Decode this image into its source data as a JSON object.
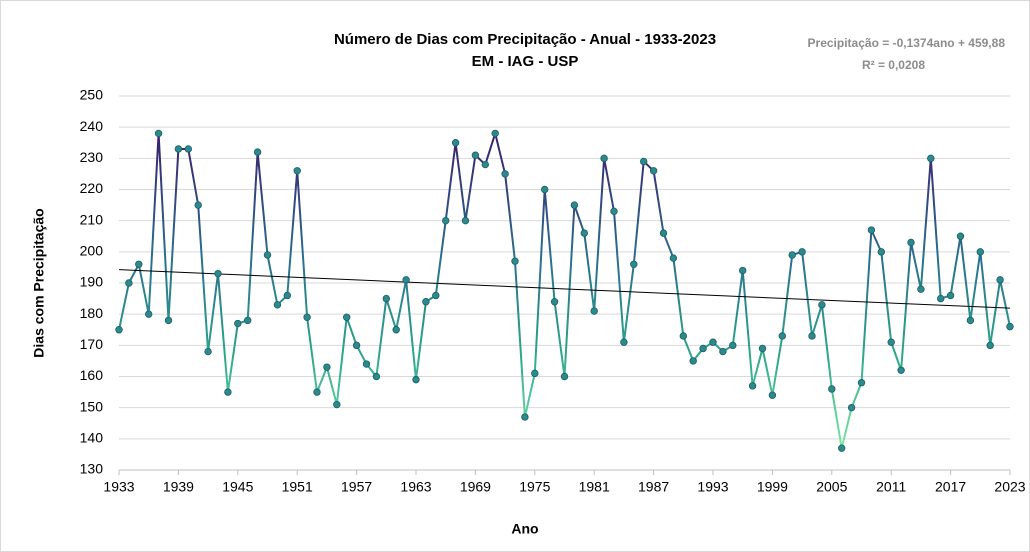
{
  "chart_data": {
    "type": "line",
    "title": "Número de Dias com Precipitação - Anual - 1933-2023",
    "subtitle": "EM - IAG - USP",
    "x_label": "Ano",
    "y_label": "Dias com Precipitação",
    "x": [
      1933,
      1934,
      1935,
      1936,
      1937,
      1938,
      1939,
      1940,
      1941,
      1942,
      1943,
      1944,
      1945,
      1946,
      1947,
      1948,
      1949,
      1950,
      1951,
      1952,
      1953,
      1954,
      1955,
      1956,
      1957,
      1958,
      1959,
      1960,
      1961,
      1962,
      1963,
      1964,
      1965,
      1966,
      1967,
      1968,
      1969,
      1970,
      1971,
      1972,
      1973,
      1974,
      1975,
      1976,
      1977,
      1978,
      1979,
      1980,
      1981,
      1982,
      1983,
      1984,
      1985,
      1986,
      1987,
      1988,
      1989,
      1990,
      1991,
      1992,
      1993,
      1994,
      1995,
      1996,
      1997,
      1998,
      1999,
      2000,
      2001,
      2002,
      2003,
      2004,
      2005,
      2006,
      2007,
      2008,
      2009,
      2010,
      2011,
      2012,
      2013,
      2014,
      2015,
      2016,
      2017,
      2018,
      2019,
      2020,
      2021,
      2022,
      2023
    ],
    "values": [
      175,
      190,
      196,
      180,
      238,
      178,
      233,
      233,
      215,
      168,
      193,
      155,
      177,
      178,
      232,
      199,
      183,
      186,
      226,
      179,
      155,
      163,
      151,
      179,
      170,
      164,
      160,
      185,
      175,
      191,
      159,
      184,
      186,
      210,
      235,
      210,
      231,
      228,
      238,
      225,
      197,
      147,
      161,
      220,
      184,
      160,
      215,
      206,
      181,
      230,
      213,
      171,
      196,
      229,
      226,
      206,
      198,
      173,
      165,
      169,
      171,
      168,
      170,
      194,
      157,
      169,
      154,
      173,
      199,
      200,
      173,
      183,
      156,
      137,
      150,
      158,
      207,
      200,
      171,
      162,
      203,
      188,
      230,
      185,
      186,
      205,
      178,
      200,
      170,
      191,
      176
    ],
    "marker_color": "#2a8a8e",
    "trendline": {
      "label": "Precipitação = -0,1374ano + 459,88",
      "r2_label": "R² = 0,0208",
      "slope": -0.1374,
      "intercept": 459.88,
      "color": "#000000"
    },
    "xlim": [
      1933,
      2023
    ],
    "xticks": [
      1933,
      1939,
      1945,
      1951,
      1957,
      1963,
      1969,
      1975,
      1981,
      1987,
      1993,
      1999,
      2005,
      2011,
      2017,
      2023
    ],
    "ylim": [
      130,
      250
    ],
    "yticks": [
      130,
      140,
      150,
      160,
      170,
      180,
      190,
      200,
      210,
      220,
      230,
      240,
      250
    ],
    "grid": true
  }
}
